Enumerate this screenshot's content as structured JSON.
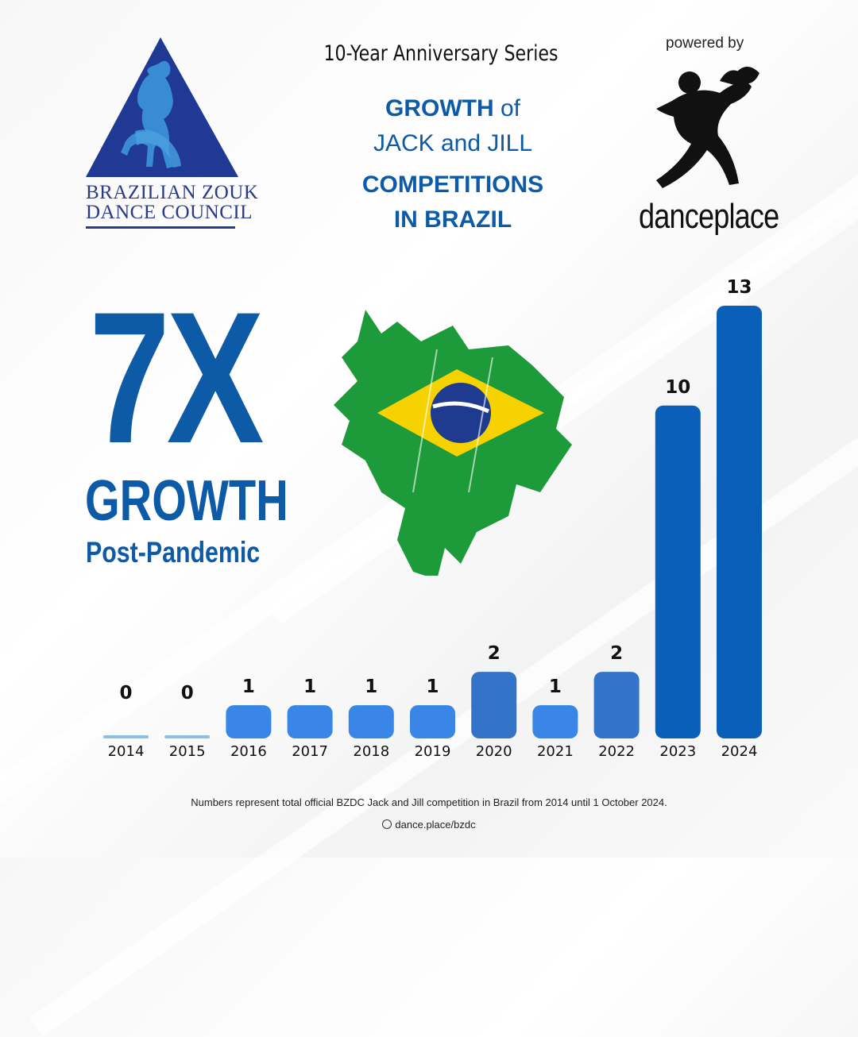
{
  "header": {
    "series_title": "10-Year Anniversary Series",
    "line1_bold": "GROWTH",
    "line1_rest": " of",
    "line2": "JACK and JILL",
    "line3": "COMPETITIONS",
    "line4_pre": "IN ",
    "line4_bold": "BRAZIL"
  },
  "logo": {
    "org_line1": "BRAZILIAN ZOUK",
    "org_line2": "DANCE COUNCIL"
  },
  "sponsor": {
    "powered_by": "powered by",
    "name": "danceplace"
  },
  "highlight": {
    "multiplier": "7X",
    "word": "GROWTH",
    "subtitle": "Post-Pandemic"
  },
  "colors": {
    "brand_blue": "#0d5aa7",
    "bar_light": "#3a86e6",
    "bar_mid": "#3373c8",
    "bar_dark": "#0a5fb8",
    "bar_zero": "#8cbfe6"
  },
  "chart_data": {
    "type": "bar",
    "categories": [
      "2014",
      "2015",
      "2016",
      "2017",
      "2018",
      "2019",
      "2020",
      "2021",
      "2022",
      "2023",
      "2024"
    ],
    "values": [
      0,
      0,
      1,
      1,
      1,
      1,
      2,
      1,
      2,
      10,
      13
    ],
    "title": "",
    "xlabel": "",
    "ylabel": "",
    "ylim": [
      0,
      13
    ]
  },
  "footer": {
    "note": "Numbers represent total official BZDC Jack and Jill competition in Brazil from 2014 until 1 October 2024.",
    "website": "dance.place/bzdc"
  }
}
